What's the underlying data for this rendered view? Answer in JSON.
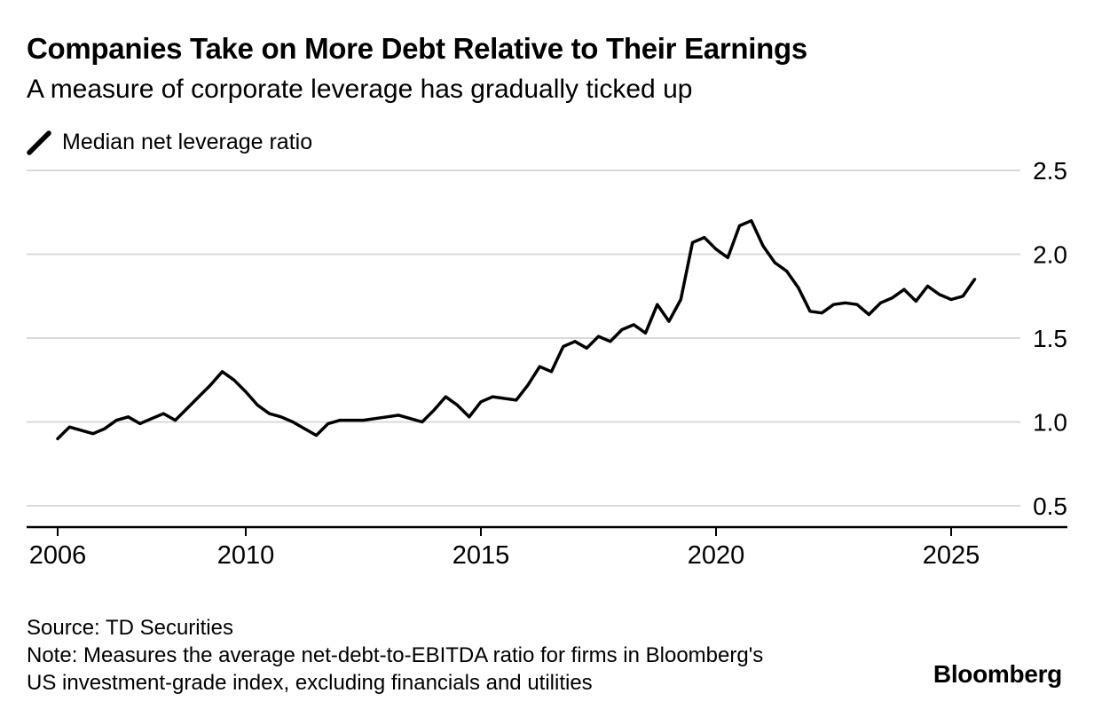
{
  "header": {
    "title": "Companies Take on More Debt Relative to Their Earnings",
    "subtitle": "A measure of corporate leverage has gradually ticked up"
  },
  "legend": {
    "label": "Median net leverage ratio",
    "color": "#000000"
  },
  "chart_data": {
    "type": "line",
    "title": "Companies Take on More Debt Relative to Their Earnings",
    "subtitle": "A measure of corporate leverage has gradually ticked up",
    "series": [
      {
        "name": "Median net leverage ratio",
        "x_start": 2006.0,
        "x_step": 0.25,
        "values": [
          0.9,
          0.97,
          0.95,
          0.93,
          0.96,
          1.01,
          1.03,
          0.99,
          1.02,
          1.05,
          1.01,
          1.08,
          1.15,
          1.22,
          1.3,
          1.25,
          1.18,
          1.1,
          1.05,
          1.03,
          1.0,
          0.96,
          0.92,
          0.99,
          1.01,
          1.01,
          1.01,
          1.02,
          1.03,
          1.04,
          1.02,
          1.0,
          1.07,
          1.15,
          1.1,
          1.03,
          1.12,
          1.15,
          1.14,
          1.13,
          1.22,
          1.33,
          1.3,
          1.45,
          1.48,
          1.44,
          1.51,
          1.48,
          1.55,
          1.58,
          1.53,
          1.7,
          1.6,
          1.73,
          2.07,
          2.1,
          2.03,
          1.98,
          2.17,
          2.2,
          2.05,
          1.95,
          1.9,
          1.8,
          1.66,
          1.65,
          1.7,
          1.71,
          1.7,
          1.64,
          1.71,
          1.74,
          1.79,
          1.72,
          1.81,
          1.76,
          1.73,
          1.75,
          1.85
        ]
      }
    ],
    "x_ticks": [
      "2006",
      "2010",
      "2015",
      "2020",
      "2025"
    ],
    "x_tick_years": [
      2006,
      2010,
      2015,
      2020,
      2025
    ],
    "y_ticks": [
      "2.5",
      "2.0",
      "1.5",
      "1.0",
      "0.5"
    ],
    "y_tick_values": [
      2.5,
      2.0,
      1.5,
      1.0,
      0.5
    ],
    "xlim": [
      2005.3,
      2027.9
    ],
    "ylim": [
      0.37,
      2.65
    ],
    "grid": true,
    "legend_position": "top-left",
    "line_color": "#000000",
    "grid_color": "#d9d9d9",
    "axis_color": "#000000"
  },
  "footer": {
    "source": "Source: TD Securities",
    "note_lines": [
      "Note: Measures the average net-debt-to-EBITDA ratio for firms in Bloomberg's",
      "US investment-grade index, excluding financials and utilities"
    ],
    "brand": "Bloomberg"
  }
}
